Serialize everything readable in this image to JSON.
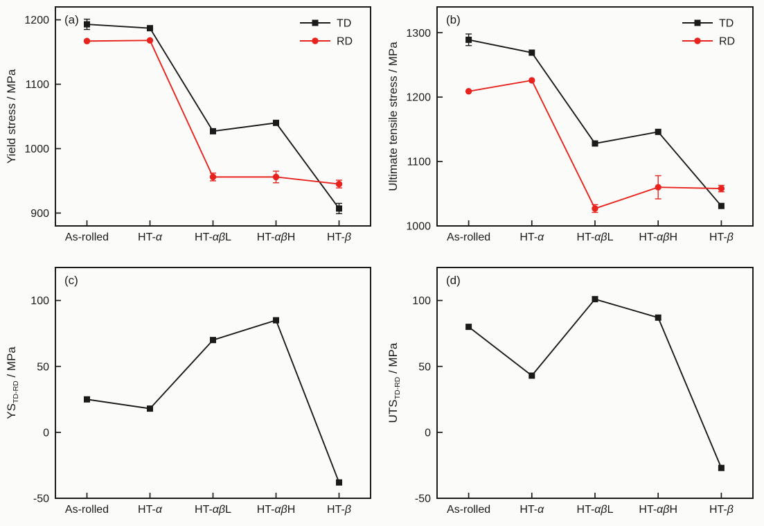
{
  "figure": {
    "background": "#fbfbf9",
    "frame_color": "#1a1a1a",
    "accent_red": "#e8231e",
    "accent_black": "#1a1a1a"
  },
  "chart_data": [
    {
      "panel": "(a)",
      "type": "line",
      "categories": [
        "As-rolled",
        "HT-α",
        "HT-αβL",
        "HT-αβH",
        "HT-β"
      ],
      "ylabel": [
        {
          "text": "Yield stress / MPa"
        }
      ],
      "yticks": [
        900,
        1000,
        1100,
        1200
      ],
      "ylim": [
        880,
        1220
      ],
      "grid": false,
      "legend": {
        "show": true,
        "position": "top-right"
      },
      "series": [
        {
          "name": "TD",
          "color": "#1a1a1a",
          "marker": "square",
          "values": [
            1193,
            1187,
            1027,
            1040,
            907
          ],
          "errors": [
            8,
            0,
            0,
            0,
            8
          ]
        },
        {
          "name": "RD",
          "color": "#e8231e",
          "marker": "circle",
          "values": [
            1167,
            1168,
            956,
            956,
            945
          ],
          "errors": [
            0,
            0,
            6,
            9,
            6
          ]
        }
      ]
    },
    {
      "panel": "(b)",
      "type": "line",
      "categories": [
        "As-rolled",
        "HT-α",
        "HT-αβL",
        "HT-αβH",
        "HT-β"
      ],
      "ylabel": [
        {
          "text": "Ultimate tensile stress / MPa"
        }
      ],
      "yticks": [
        1000,
        1100,
        1200,
        1300
      ],
      "ylim": [
        1000,
        1340
      ],
      "grid": false,
      "legend": {
        "show": true,
        "position": "top-right"
      },
      "series": [
        {
          "name": "TD",
          "color": "#1a1a1a",
          "marker": "square",
          "values": [
            1289,
            1269,
            1128,
            1146,
            1031
          ],
          "errors": [
            9,
            0,
            0,
            0,
            0
          ]
        },
        {
          "name": "RD",
          "color": "#e8231e",
          "marker": "circle",
          "values": [
            1209,
            1226,
            1027,
            1060,
            1058
          ],
          "errors": [
            0,
            0,
            6,
            18,
            5
          ]
        }
      ]
    },
    {
      "panel": "(c)",
      "type": "line",
      "categories": [
        "As-rolled",
        "HT-α",
        "HT-αβL",
        "HT-αβH",
        "HT-β"
      ],
      "ylabel": [
        {
          "text": "YS"
        },
        {
          "text": "TD-RD",
          "sub": true
        },
        {
          "text": " / MPa"
        }
      ],
      "yticks": [
        -50,
        0,
        50,
        100
      ],
      "ylim": [
        -50,
        125
      ],
      "grid": false,
      "legend": {
        "show": false
      },
      "series": [
        {
          "name": "TD-RD",
          "color": "#1a1a1a",
          "marker": "square",
          "values": [
            25,
            18,
            70,
            85,
            -38
          ],
          "errors": [
            0,
            0,
            0,
            0,
            0
          ]
        }
      ]
    },
    {
      "panel": "(d)",
      "type": "line",
      "categories": [
        "As-rolled",
        "HT-α",
        "HT-αβL",
        "HT-αβH",
        "HT-β"
      ],
      "ylabel": [
        {
          "text": "UTS"
        },
        {
          "text": "TD-RD",
          "sub": true
        },
        {
          "text": " / MPa"
        }
      ],
      "yticks": [
        -50,
        0,
        50,
        100
      ],
      "ylim": [
        -50,
        125
      ],
      "grid": false,
      "legend": {
        "show": false
      },
      "series": [
        {
          "name": "TD-RD",
          "color": "#1a1a1a",
          "marker": "square",
          "values": [
            80,
            43,
            101,
            87,
            -27
          ],
          "errors": [
            0,
            0,
            0,
            0,
            0
          ]
        }
      ]
    }
  ]
}
